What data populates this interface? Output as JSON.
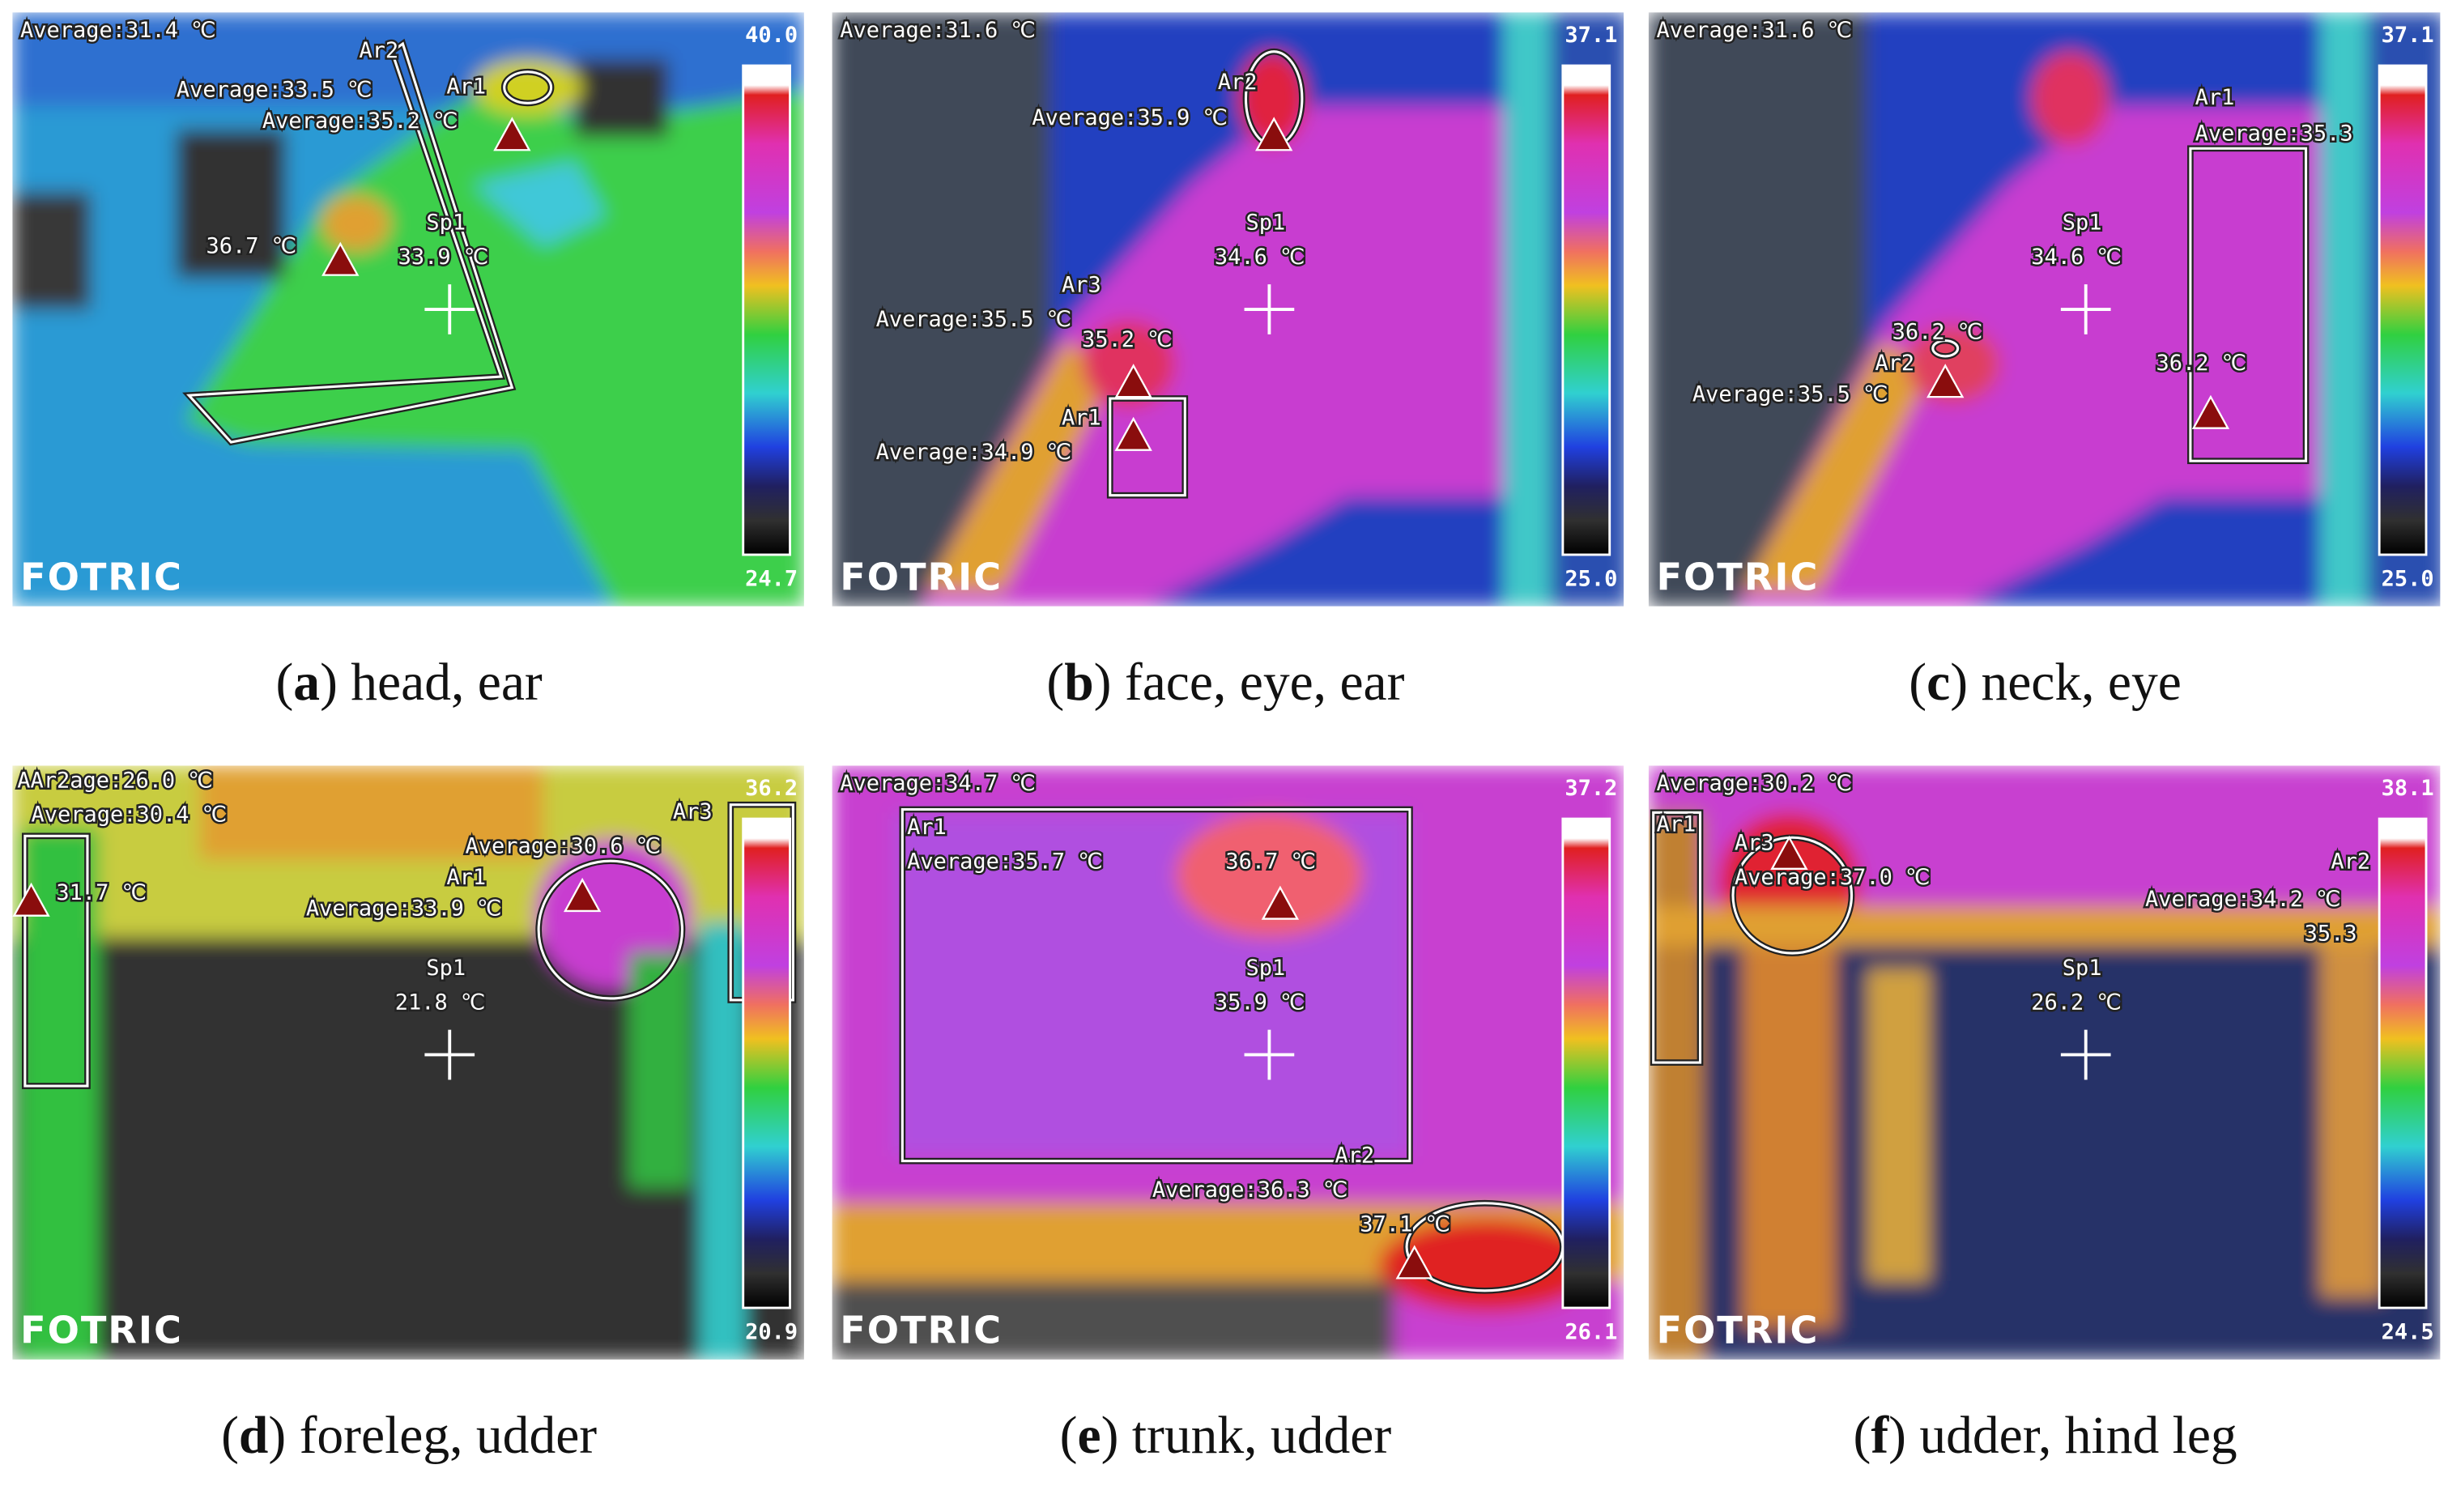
{
  "panels": [
    {
      "caption": {
        "open": "(",
        "letter": "a",
        "rest": ") head, ear"
      },
      "scale_max": "40.0",
      "scale_min": "24.7",
      "brand": "FOTRIC",
      "annotations": [
        "Average:31.4 ℃",
        "Ar2",
        "Average:33.5 ℃",
        "Ar1",
        "Average:35.2 ℃",
        "Sp1",
        "33.9 ℃",
        "36.7 ℃"
      ]
    },
    {
      "caption": {
        "open": "(",
        "letter": "b",
        "rest": ") face, eye, ear"
      },
      "scale_max": "37.1",
      "scale_min": "25.0",
      "brand": "FOTRIC",
      "annotations": [
        "Average:31.6 ℃",
        "Ar2",
        "Average:35.9 ℃",
        "Sp1",
        "34.6 ℃",
        "Ar3",
        "Average:35.5 ℃",
        "35.2 ℃",
        "Ar1",
        "Average:34.9 ℃"
      ]
    },
    {
      "caption": {
        "open": "(",
        "letter": "c",
        "rest": ") neck, eye"
      },
      "scale_max": "37.1",
      "scale_min": "25.0",
      "brand": "FOTRIC",
      "annotations": [
        "Average:31.6 ℃",
        "Ar1",
        "Average:35.3",
        "Sp1",
        "34.6 ℃",
        "36.2 ℃",
        "Ar2",
        "Average:35.5 ℃",
        "36.2 ℃"
      ]
    },
    {
      "caption": {
        "open": "(",
        "letter": "d",
        "rest": ") foreleg, udder"
      },
      "scale_max": "36.2",
      "scale_min": "20.9",
      "brand": "FOTRIC",
      "annotations": [
        "AAr2age:26.0 ℃",
        "Average:30.4 ℃",
        "31.7 ℃",
        "Average:30.6 ℃",
        "Ar1",
        "Ar3",
        "Average:33.9 ℃",
        "Sp1",
        "21.8 ℃"
      ]
    },
    {
      "caption": {
        "open": "(",
        "letter": "e",
        "rest": ") trunk, udder"
      },
      "scale_max": "37.2",
      "scale_min": "26.1",
      "brand": "FOTRIC",
      "annotations": [
        "Average:34.7 ℃",
        "Ar1",
        "Average:35.7 ℃",
        "36.7 ℃",
        "Sp1",
        "35.9 ℃",
        "Ar2",
        "Average:36.3 ℃",
        "37.1 ℃"
      ]
    },
    {
      "caption": {
        "open": "(",
        "letter": "f",
        "rest": ") udder, hind leg"
      },
      "scale_max": "38.1",
      "scale_min": "24.5",
      "brand": "FOTRIC",
      "annotations": [
        "Average:30.2 ℃",
        "Ar1",
        "Ar3",
        "Average:37.0 ℃",
        "Average:34.2 ℃",
        "Ar2",
        "35.3",
        "Sp1",
        "26.2 ℃"
      ]
    }
  ]
}
